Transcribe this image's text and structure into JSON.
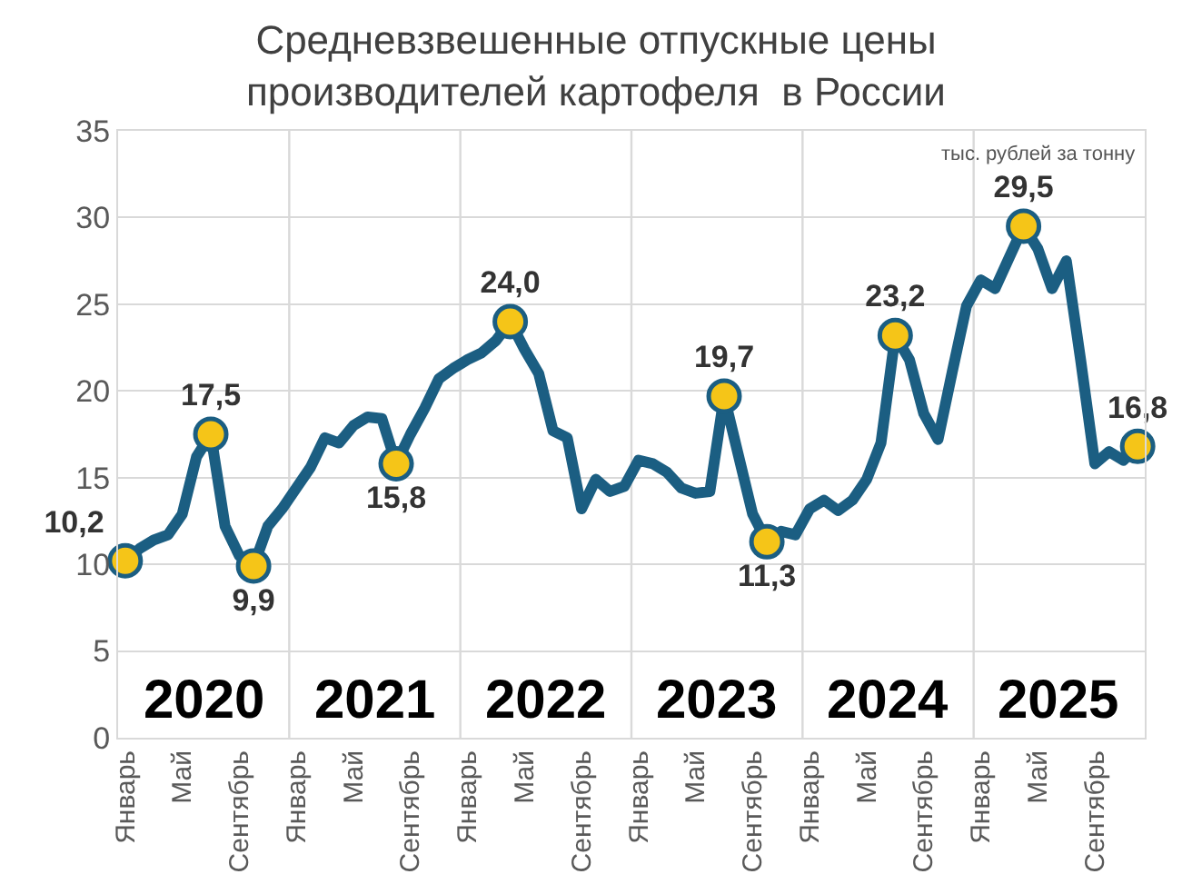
{
  "chart_data": {
    "type": "line",
    "title": "Средневзвешенные отпускные цены\nпроизводителей картофеля  в России",
    "categories": [
      "Январь",
      null,
      null,
      null,
      "Май",
      null,
      null,
      null,
      "Сентябрь",
      null,
      null,
      null,
      "Январь",
      null,
      null,
      null,
      "Май",
      null,
      null,
      null,
      "Сентябрь",
      null,
      null,
      null,
      "Январь",
      null,
      null,
      null,
      "Май",
      null,
      null,
      null,
      "Сентябрь",
      null,
      null,
      null,
      "Январь",
      null,
      null,
      null,
      "Май",
      null,
      null,
      null,
      "Сентябрь",
      null,
      null,
      null,
      "Январь",
      null,
      null,
      null,
      "Май",
      null,
      null,
      null,
      "Сентябрь",
      null,
      null,
      null,
      "Январь",
      null,
      null,
      null,
      "Май",
      null,
      null,
      null,
      "Сентябрь",
      null,
      null,
      null
    ],
    "series": [
      {
        "color": "#1b5e82",
        "values": [
          10.2,
          10.9,
          11.4,
          11.7,
          12.9,
          16.2,
          17.5,
          12.2,
          10.5,
          9.9,
          12.2,
          13.2,
          14.4,
          15.6,
          17.3,
          17.0,
          18.0,
          18.5,
          18.4,
          15.8,
          17.5,
          19.0,
          20.7,
          21.3,
          21.8,
          22.2,
          22.9,
          24.0,
          22.4,
          21.0,
          17.7,
          17.3,
          13.2,
          14.9,
          14.2,
          14.5,
          16.0,
          15.8,
          15.3,
          14.4,
          14.1,
          14.2,
          19.7,
          16.3,
          12.9,
          11.3,
          11.9,
          11.7,
          13.2,
          13.7,
          13.1,
          13.7,
          14.9,
          17.0,
          23.2,
          21.8,
          18.7,
          17.2,
          21.1,
          24.9,
          26.4,
          25.9,
          27.7,
          29.5,
          28.2,
          25.9,
          27.5,
          21.8,
          15.8,
          16.5,
          16.0,
          16.8
        ],
        "value_labels": [
          "10,2",
          null,
          null,
          null,
          null,
          null,
          "17,5",
          null,
          null,
          "9,9",
          null,
          null,
          null,
          null,
          null,
          null,
          null,
          null,
          null,
          "15,8",
          null,
          null,
          null,
          null,
          null,
          null,
          null,
          "24,0",
          null,
          null,
          null,
          null,
          null,
          null,
          null,
          null,
          null,
          null,
          null,
          null,
          null,
          null,
          "19,7",
          null,
          null,
          "11,3",
          null,
          null,
          null,
          null,
          null,
          null,
          null,
          null,
          "23,2",
          null,
          null,
          null,
          null,
          null,
          null,
          null,
          null,
          "29,5",
          null,
          null,
          null,
          null,
          null,
          null,
          null,
          "16,8"
        ]
      }
    ],
    "ylim": [
      0,
      35
    ],
    "yticks": [
      0,
      5,
      10,
      15,
      20,
      25,
      30,
      35
    ],
    "grid": true,
    "annotations": [
      "тыс. рублей за тонну",
      "2020",
      "2021",
      "2022",
      "2023",
      "2024",
      "2025"
    ]
  }
}
